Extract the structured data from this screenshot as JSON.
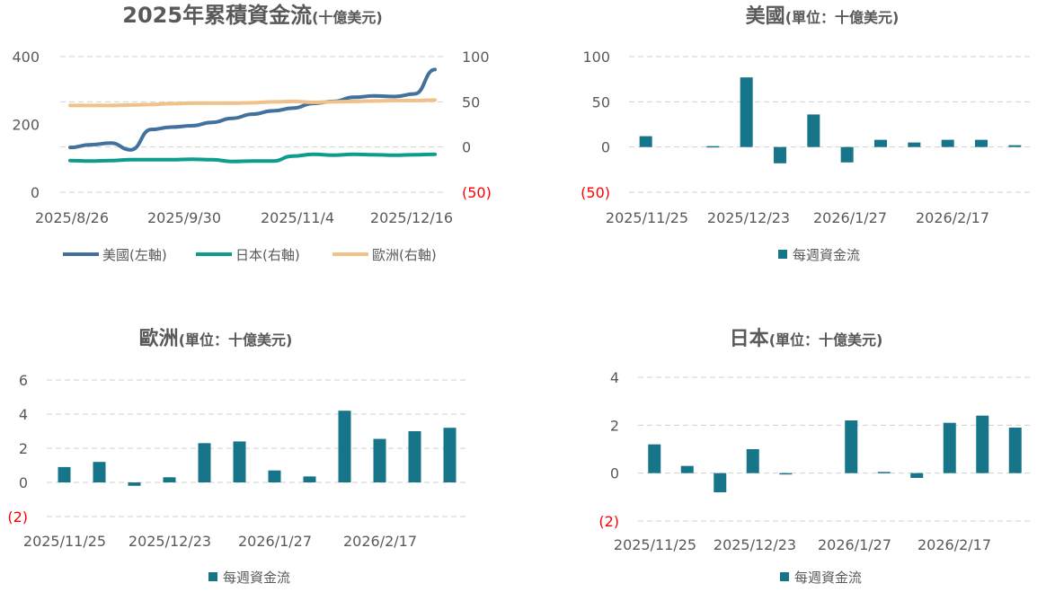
{
  "chart_data": [
    {
      "type": "line",
      "title": "2025年累積資金流",
      "subtitle": "(十億美元)",
      "x_ticks": [
        "2025/8/26",
        "2025/9/30",
        "2025/11/4",
        "2025/12/16"
      ],
      "y_left": {
        "ticks": [
          "400",
          "200",
          "0"
        ],
        "ylim": [
          0,
          400
        ]
      },
      "y_right": {
        "ticks": [
          "100",
          "50",
          "0",
          "(50)"
        ],
        "ylim": [
          -50,
          100
        ]
      },
      "x": [
        "2025/8/26",
        "2025/9/2",
        "2025/9/9",
        "2025/9/16",
        "2025/9/23",
        "2025/9/30",
        "2025/10/7",
        "2025/10/14",
        "2025/10/21",
        "2025/10/28",
        "2025/11/4",
        "2025/11/11",
        "2025/11/18",
        "2025/11/25",
        "2025/12/2",
        "2025/12/9",
        "2025/12/16",
        "2025/12/23",
        "2025/12/30"
      ],
      "series": [
        {
          "name": "美國(左軸)",
          "axis": "left",
          "color": "#41719c",
          "values": [
            132,
            140,
            145,
            125,
            185,
            192,
            196,
            206,
            218,
            230,
            240,
            248,
            262,
            268,
            280,
            284,
            282,
            290,
            362
          ]
        },
        {
          "name": "日本(右軸)",
          "axis": "right",
          "color": "#0e9c8c",
          "values": [
            -15,
            -15.5,
            -15,
            -14,
            -14,
            -14,
            -13.5,
            -14,
            -16,
            -15.5,
            -15.5,
            -10,
            -8,
            -9,
            -8,
            -8.5,
            -9,
            -8.5,
            -8
          ]
        },
        {
          "name": "歐洲(右軸)",
          "axis": "right",
          "color": "#f0c289",
          "values": [
            46,
            46,
            46,
            46.5,
            47,
            48,
            48.5,
            48.5,
            48.5,
            49,
            50,
            50.5,
            49.5,
            50,
            50.5,
            51,
            51.5,
            51.5,
            52
          ]
        }
      ]
    },
    {
      "type": "bar",
      "title": "美國",
      "subtitle": "(單位：十億美元)",
      "x_ticks": [
        "2025/11/25",
        "2025/12/23",
        "2026/1/27",
        "2026/2/17"
      ],
      "y_ticks": [
        "100",
        "50",
        "0",
        "(50)"
      ],
      "ylim": [
        -50,
        100
      ],
      "legend": "每週資金流",
      "color": "#17758a",
      "values": [
        12,
        0,
        1,
        77,
        -18,
        36,
        -17,
        8,
        5,
        8,
        8,
        2
      ]
    },
    {
      "type": "bar",
      "title": "歐洲",
      "subtitle": "(單位：十億美元)",
      "x_ticks": [
        "2025/11/25",
        "2025/12/23",
        "2026/1/27",
        "2026/2/17"
      ],
      "y_ticks": [
        "6",
        "4",
        "2",
        "0",
        "(2)"
      ],
      "ylim": [
        -2,
        6
      ],
      "legend": "每週資金流",
      "color": "#17758a",
      "values": [
        0.9,
        1.2,
        -0.2,
        0.3,
        2.3,
        2.4,
        0.7,
        0.35,
        4.2,
        2.55,
        3.0,
        3.2
      ]
    },
    {
      "type": "bar",
      "title": "日本",
      "subtitle": "(單位：十億美元)",
      "x_ticks": [
        "2025/11/25",
        "2025/12/23",
        "2026/1/27",
        "2026/2/17"
      ],
      "y_ticks": [
        "4",
        "2",
        "0",
        "(2)"
      ],
      "ylim": [
        -2,
        4
      ],
      "legend": "每週資金流",
      "color": "#17758a",
      "values": [
        1.2,
        0.3,
        -0.8,
        1.0,
        -0.05,
        0,
        2.2,
        0.05,
        -0.2,
        2.1,
        2.4,
        1.9
      ]
    }
  ]
}
